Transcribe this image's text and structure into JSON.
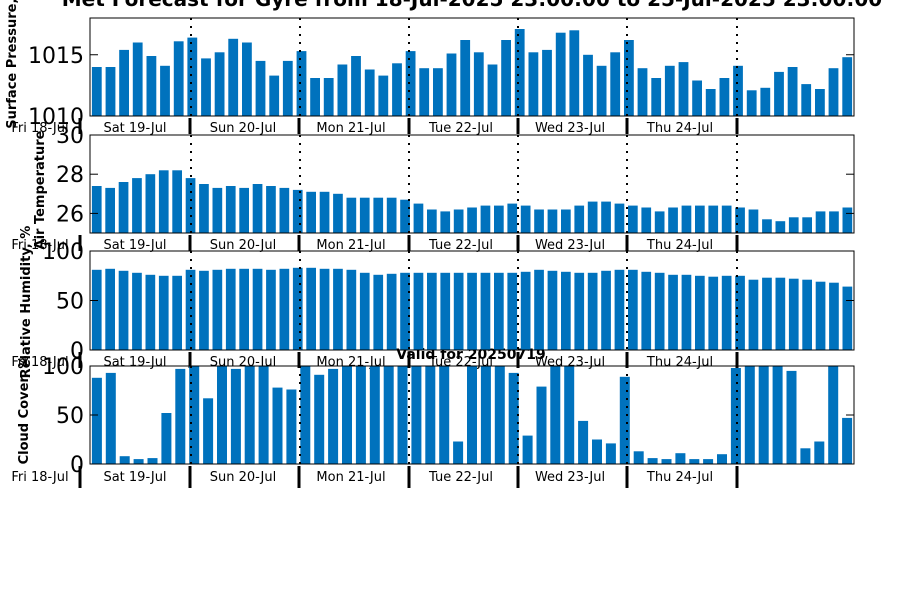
{
  "title": "Met Forecast for Gyre from 18-Jul-2025 23:00:00 to 25-Jul-2025 23:00:00",
  "subtitle": "Valid for 20250719",
  "x_labels": [
    "Fri 18-Jul",
    "Sat 19-Jul",
    "Sun 20-Jul",
    "Mon 21-Jul",
    "Tue 22-Jul",
    "Wed 23-Jul",
    "Thu 24-Jul"
  ],
  "colors": {
    "bar": "#0072bd",
    "frame": "#000000"
  },
  "chart_data": [
    {
      "type": "bar",
      "ylabel": "Surface Pressure, mb",
      "ylim": [
        1010,
        1018
      ],
      "yticks": [
        1010,
        1015
      ],
      "values": [
        1014,
        1014,
        1015.4,
        1016,
        1014.9,
        1014.1,
        1016.1,
        1016.4,
        1014.7,
        1015.2,
        1016.3,
        1016,
        1014.5,
        1013.3,
        1014.5,
        1015.3,
        1013.1,
        1013.1,
        1014.2,
        1014.9,
        1013.8,
        1013.3,
        1014.3,
        1015.3,
        1013.9,
        1013.9,
        1015.1,
        1016.2,
        1015.2,
        1014.2,
        1016.2,
        1017.1,
        1015.2,
        1015.4,
        1016.8,
        1017,
        1015,
        1014.1,
        1015.2,
        1016.2,
        1013.9,
        1013.1,
        1014.1,
        1014.4,
        1012.9,
        1012.2,
        1013.1,
        1014.1,
        1012.1,
        1012.3,
        1013.6,
        1014,
        1012.6,
        1012.2,
        1013.9,
        1014.8
      ]
    },
    {
      "type": "bar",
      "ylabel": "Air Temperature",
      "ylim": [
        25,
        30
      ],
      "yticks": [
        26,
        28,
        30
      ],
      "values": [
        27.4,
        27.3,
        27.6,
        27.8,
        28,
        28.2,
        28.2,
        27.8,
        27.5,
        27.3,
        27.4,
        27.3,
        27.5,
        27.4,
        27.3,
        27.2,
        27.1,
        27.1,
        27,
        26.8,
        26.8,
        26.8,
        26.8,
        26.7,
        26.5,
        26.2,
        26.1,
        26.2,
        26.3,
        26.4,
        26.4,
        26.5,
        26.4,
        26.2,
        26.2,
        26.2,
        26.4,
        26.6,
        26.6,
        26.5,
        26.4,
        26.3,
        26.1,
        26.3,
        26.4,
        26.4,
        26.4,
        26.4,
        26.3,
        26.2,
        25.7,
        25.6,
        25.8,
        25.8,
        26.1,
        26.1,
        26.3
      ]
    },
    {
      "type": "bar",
      "ylabel": "Relative Humidity, %",
      "ylim": [
        0,
        100
      ],
      "yticks": [
        0,
        50,
        100
      ],
      "values": [
        81,
        82,
        80,
        78,
        76,
        75,
        75,
        81,
        80,
        81,
        82,
        82,
        82,
        81,
        82,
        83,
        83,
        82,
        82,
        81,
        78,
        76,
        77,
        78,
        78,
        78,
        78,
        78,
        78,
        78,
        78,
        78,
        79,
        81,
        80,
        79,
        78,
        78,
        80,
        81,
        81,
        79,
        78,
        76,
        76,
        75,
        74,
        75,
        75,
        71,
        73,
        73,
        72,
        71,
        69,
        68,
        64
      ]
    },
    {
      "type": "bar",
      "ylabel": "Cloud Cover, %",
      "ylim": [
        0,
        100
      ],
      "yticks": [
        0,
        50,
        100
      ],
      "values": [
        88,
        93,
        8,
        5,
        6,
        52,
        97,
        100,
        67,
        100,
        97,
        100,
        100,
        78,
        76,
        100,
        91,
        97,
        100,
        100,
        100,
        100,
        100,
        100,
        100,
        100,
        23,
        100,
        100,
        100,
        93,
        29,
        79,
        100,
        100,
        44,
        25,
        21,
        89,
        13,
        6,
        5,
        11,
        5,
        5,
        10,
        98,
        100,
        100,
        100,
        95,
        16,
        23,
        100,
        47
      ]
    }
  ]
}
